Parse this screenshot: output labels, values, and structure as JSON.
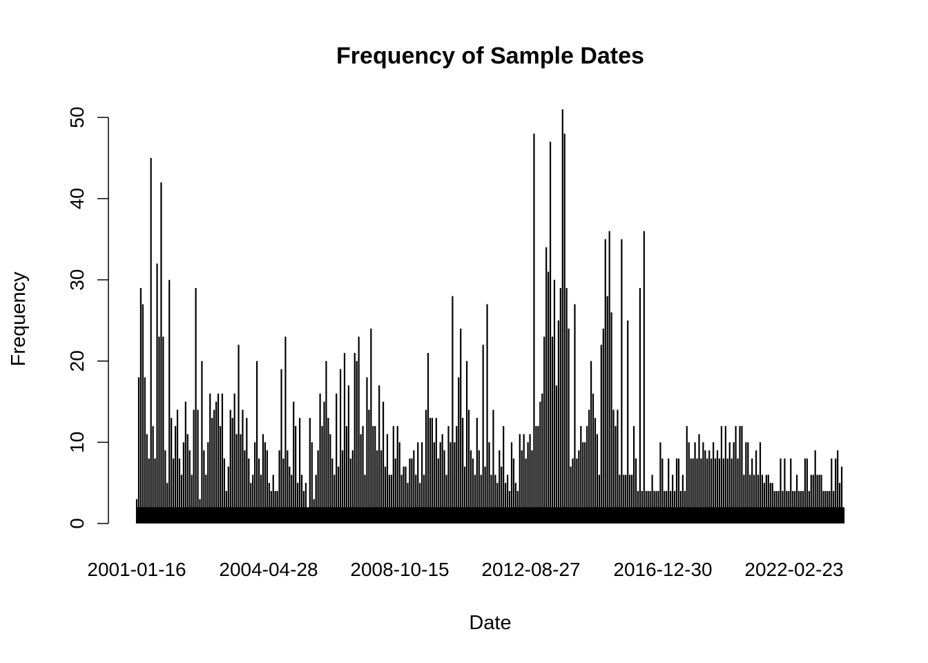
{
  "chart_data": {
    "type": "bar",
    "title": "Frequency of Sample Dates",
    "xlabel": "Date",
    "ylabel": "Frequency",
    "ylim": [
      0,
      50
    ],
    "y_ticks": [
      0,
      10,
      20,
      30,
      40,
      50
    ],
    "x_tick_labels": [
      "2001-01-16",
      "2004-04-28",
      "2008-10-15",
      "2012-08-27",
      "2016-12-30",
      "2022-02-23"
    ],
    "grid": false,
    "legend": "none",
    "bar_color": "#000000",
    "note": "Bars are drawn one per distinct sample date in order; values listed are approximate readings of representative peaks from left to right.",
    "values": [
      3,
      18,
      29,
      27,
      18,
      11,
      8,
      45,
      12,
      8,
      32,
      23,
      42,
      23,
      9,
      5,
      30,
      13,
      8,
      12,
      14,
      8,
      6,
      10,
      15,
      11,
      9,
      6,
      14,
      29,
      14,
      3,
      20,
      9,
      6,
      10,
      16,
      13,
      14,
      15,
      16,
      12,
      16,
      8,
      4,
      7,
      14,
      13,
      16,
      11,
      22,
      11,
      14,
      9,
      13,
      8,
      5,
      6,
      10,
      20,
      8,
      6,
      11,
      10,
      9,
      5,
      4,
      6,
      4,
      4,
      9,
      19,
      8,
      23,
      9,
      7,
      6,
      15,
      12,
      5,
      13,
      6,
      4,
      5,
      2,
      13,
      10,
      3,
      6,
      9,
      16,
      12,
      15,
      20,
      13,
      11,
      8,
      6,
      16,
      7,
      19,
      9,
      21,
      12,
      17,
      8,
      9,
      21,
      20,
      23,
      11,
      12,
      6,
      18,
      14,
      24,
      12,
      12,
      9,
      17,
      9,
      15,
      7,
      11,
      6,
      6,
      12,
      8,
      12,
      10,
      6,
      7,
      7,
      5,
      8,
      8,
      9,
      6,
      10,
      5,
      10,
      6,
      14,
      21,
      13,
      13,
      10,
      13,
      8,
      10,
      11,
      9,
      6,
      12,
      10,
      28,
      10,
      12,
      18,
      24,
      13,
      7,
      20,
      14,
      9,
      8,
      6,
      13,
      9,
      6,
      22,
      7,
      27,
      10,
      6,
      14,
      6,
      5,
      9,
      7,
      12,
      5,
      6,
      4,
      10,
      8,
      5,
      4,
      11,
      9,
      11,
      8,
      10,
      11,
      9,
      48,
      12,
      12,
      15,
      16,
      23,
      34,
      31,
      47,
      23,
      30,
      17,
      25,
      29,
      51,
      48,
      29,
      24,
      7,
      8,
      27,
      8,
      9,
      12,
      10,
      10,
      12,
      14,
      20,
      16,
      13,
      11,
      6,
      22,
      24,
      35,
      28,
      36,
      26,
      14,
      12,
      14,
      6,
      35,
      6,
      6,
      25,
      6,
      6,
      12,
      8,
      4,
      29,
      4,
      36,
      4,
      4,
      4,
      6,
      4,
      4,
      4,
      10,
      8,
      4,
      4,
      8,
      4,
      6,
      4,
      8,
      8,
      4,
      6,
      4,
      12,
      10,
      8,
      8,
      10,
      8,
      11,
      8,
      10,
      9,
      8,
      9,
      8,
      10,
      8,
      9,
      8,
      12,
      8,
      12,
      8,
      10,
      8,
      10,
      12,
      8,
      12,
      12,
      6,
      10,
      10,
      6,
      8,
      6,
      9,
      6,
      10,
      6,
      5,
      6,
      6,
      5,
      5,
      4,
      4,
      4,
      8,
      4,
      8,
      4,
      4,
      8,
      4,
      4,
      6,
      4,
      4,
      4,
      8,
      8,
      4,
      6,
      6,
      9,
      6,
      6,
      6,
      4,
      4,
      4,
      4,
      8,
      4,
      8,
      9,
      5,
      7,
      2
    ]
  }
}
